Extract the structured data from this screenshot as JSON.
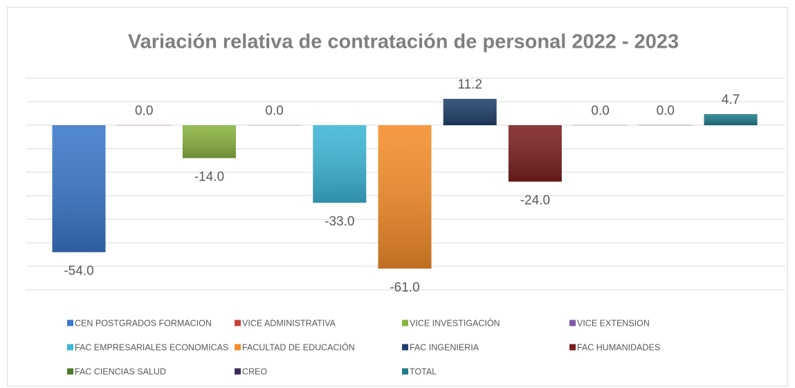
{
  "chart_data": {
    "type": "bar",
    "title": "Variación relativa de contratación de personal 2022 - 2023",
    "ylim": [
      -70,
      20
    ],
    "yticks": [
      -70,
      -60,
      -50,
      -40,
      -30,
      -20,
      -10,
      0,
      10,
      20
    ],
    "grid": true,
    "series": [
      {
        "name": "CEN POSTGRADOS FORMACION",
        "color": "#3a78c9",
        "values": [
          -54
        ],
        "value_labels": [
          "-54.0"
        ]
      },
      {
        "name": "VICE ADMINISTRATIVA",
        "color": "#c8423c",
        "values": [
          0
        ],
        "value_labels": [
          "0.0"
        ]
      },
      {
        "name": "VICE INVESTIGACIÓN",
        "color": "#8ab33f",
        "values": [
          -14
        ],
        "value_labels": [
          "-14.0"
        ]
      },
      {
        "name": "VICE EXTENSION",
        "color": "#7e5aa2",
        "values": [
          0
        ],
        "value_labels": [
          "0.0"
        ]
      },
      {
        "name": "FAC EMPRESARIALES ECONOMICAS",
        "color": "#3db6d6",
        "values": [
          -33
        ],
        "value_labels": [
          "-33.0"
        ]
      },
      {
        "name": "FACULTAD DE EDUCACIÓN",
        "color": "#f58d2a",
        "values": [
          -61
        ],
        "value_labels": [
          "-61.0"
        ]
      },
      {
        "name": "FAC INGENIERIA",
        "color": "#1f3f6b",
        "values": [
          11.2
        ],
        "value_labels": [
          "11.2"
        ]
      },
      {
        "name": "FAC HUMANIDADES",
        "color": "#7b1f1f",
        "values": [
          -24
        ],
        "value_labels": [
          "-24.0"
        ]
      },
      {
        "name": "FAC CIENCIAS SALUD",
        "color": "#4e7a2a",
        "values": [
          0
        ],
        "value_labels": [
          "0.0"
        ]
      },
      {
        "name": "CREO",
        "color": "#3e2a5c",
        "values": [
          0
        ],
        "value_labels": [
          "0.0"
        ]
      },
      {
        "name": "TOTAL",
        "color": "#1f7a8a",
        "values": [
          4.7
        ],
        "value_labels": [
          "4.7"
        ]
      }
    ]
  }
}
